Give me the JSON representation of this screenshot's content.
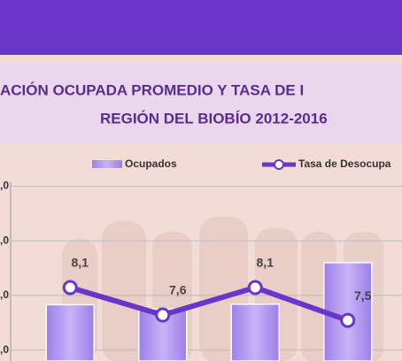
{
  "chart_data": {
    "type": "bar_line",
    "title": [
      "ACIÓN OCUPADA  PROMEDIO Y TASA DE I",
      "REGIÓN DEL BIOBÍO 2012-2016"
    ],
    "categories": [
      null,
      null,
      null,
      null
    ],
    "series": [
      {
        "name": "Ocupados",
        "color": "#b79cf2",
        "values": [
          1.83,
          1.75,
          1.84,
          2.6
        ]
      },
      {
        "name": "Tasa de Desocupa",
        "color": "#6a35c9",
        "axis": "y2",
        "values": [
          8.1,
          7.6,
          8.1,
          7.5
        ],
        "value_labels": [
          "8,1",
          "7,6",
          "8,1",
          "7,5"
        ]
      }
    ],
    "ylim": [
      0.8,
      4.2
    ],
    "yticks": [
      {
        "value": 1,
        "label": ",0"
      },
      {
        "value": 2,
        "label": ",0"
      },
      {
        "value": 3,
        "label": ",0"
      },
      {
        "value": 4,
        "label": ",0"
      }
    ],
    "y2lim": [
      6.76,
      10.15
    ],
    "grid": true
  }
}
